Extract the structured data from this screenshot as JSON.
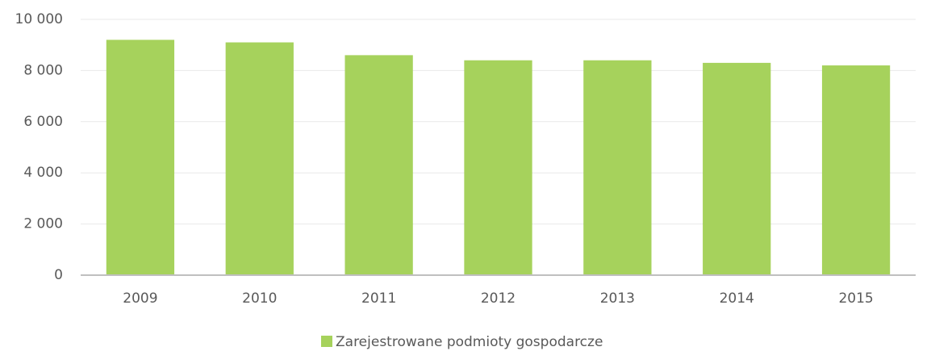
{
  "chart_data": {
    "type": "bar",
    "categories": [
      "2009",
      "2010",
      "2011",
      "2012",
      "2013",
      "2014",
      "2015"
    ],
    "series": [
      {
        "name": "Zarejestrowane podmioty gospodarcze",
        "color": "#a6d25c",
        "values": [
          9200,
          9100,
          8600,
          8400,
          8400,
          8300,
          8200
        ]
      }
    ],
    "ylim": [
      0,
      10000
    ],
    "yticks": [
      0,
      {
        "value": 2000,
        "label": "2 000"
      },
      {
        "value": 4000,
        "label": "4 000"
      },
      {
        "value": 6000,
        "label": "6 000"
      },
      {
        "value": 8000,
        "label": "8 000"
      },
      {
        "value": 10000,
        "label": "10 000"
      }
    ],
    "grid": true,
    "legend": "bottom"
  }
}
